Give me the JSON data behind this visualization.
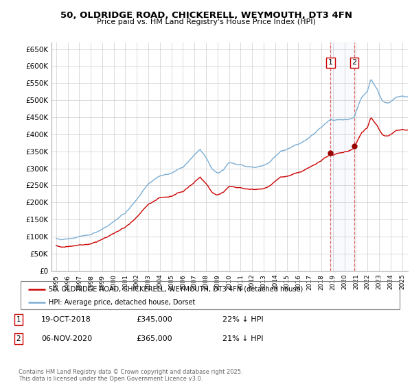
{
  "title_line1": "50, OLDRIDGE ROAD, CHICKERELL, WEYMOUTH, DT3 4FN",
  "title_line2": "Price paid vs. HM Land Registry's House Price Index (HPI)",
  "background_color": "#ffffff",
  "grid_color": "#cccccc",
  "red_line_color": "#cc0000",
  "blue_line_color": "#7aadd4",
  "transaction1": {
    "label": "1",
    "date": "19-OCT-2018",
    "price": 345000,
    "pct": "22% ↓ HPI"
  },
  "transaction2": {
    "label": "2",
    "date": "06-NOV-2020",
    "price": 365000,
    "pct": "21% ↓ HPI"
  },
  "legend_line1": "50, OLDRIDGE ROAD, CHICKERELL, WEYMOUTH, DT3 4FN (detached house)",
  "legend_line2": "HPI: Average price, detached house, Dorset",
  "footer": "Contains HM Land Registry data © Crown copyright and database right 2025.\nThis data is licensed under the Open Government Licence v3.0.",
  "ylim": [
    0,
    670000
  ],
  "yticks": [
    0,
    50000,
    100000,
    150000,
    200000,
    250000,
    300000,
    350000,
    400000,
    450000,
    500000,
    550000,
    600000,
    650000
  ],
  "ytick_labels": [
    "£0",
    "£50K",
    "£100K",
    "£150K",
    "£200K",
    "£250K",
    "£300K",
    "£350K",
    "£400K",
    "£450K",
    "£500K",
    "£550K",
    "£600K",
    "£650K"
  ]
}
